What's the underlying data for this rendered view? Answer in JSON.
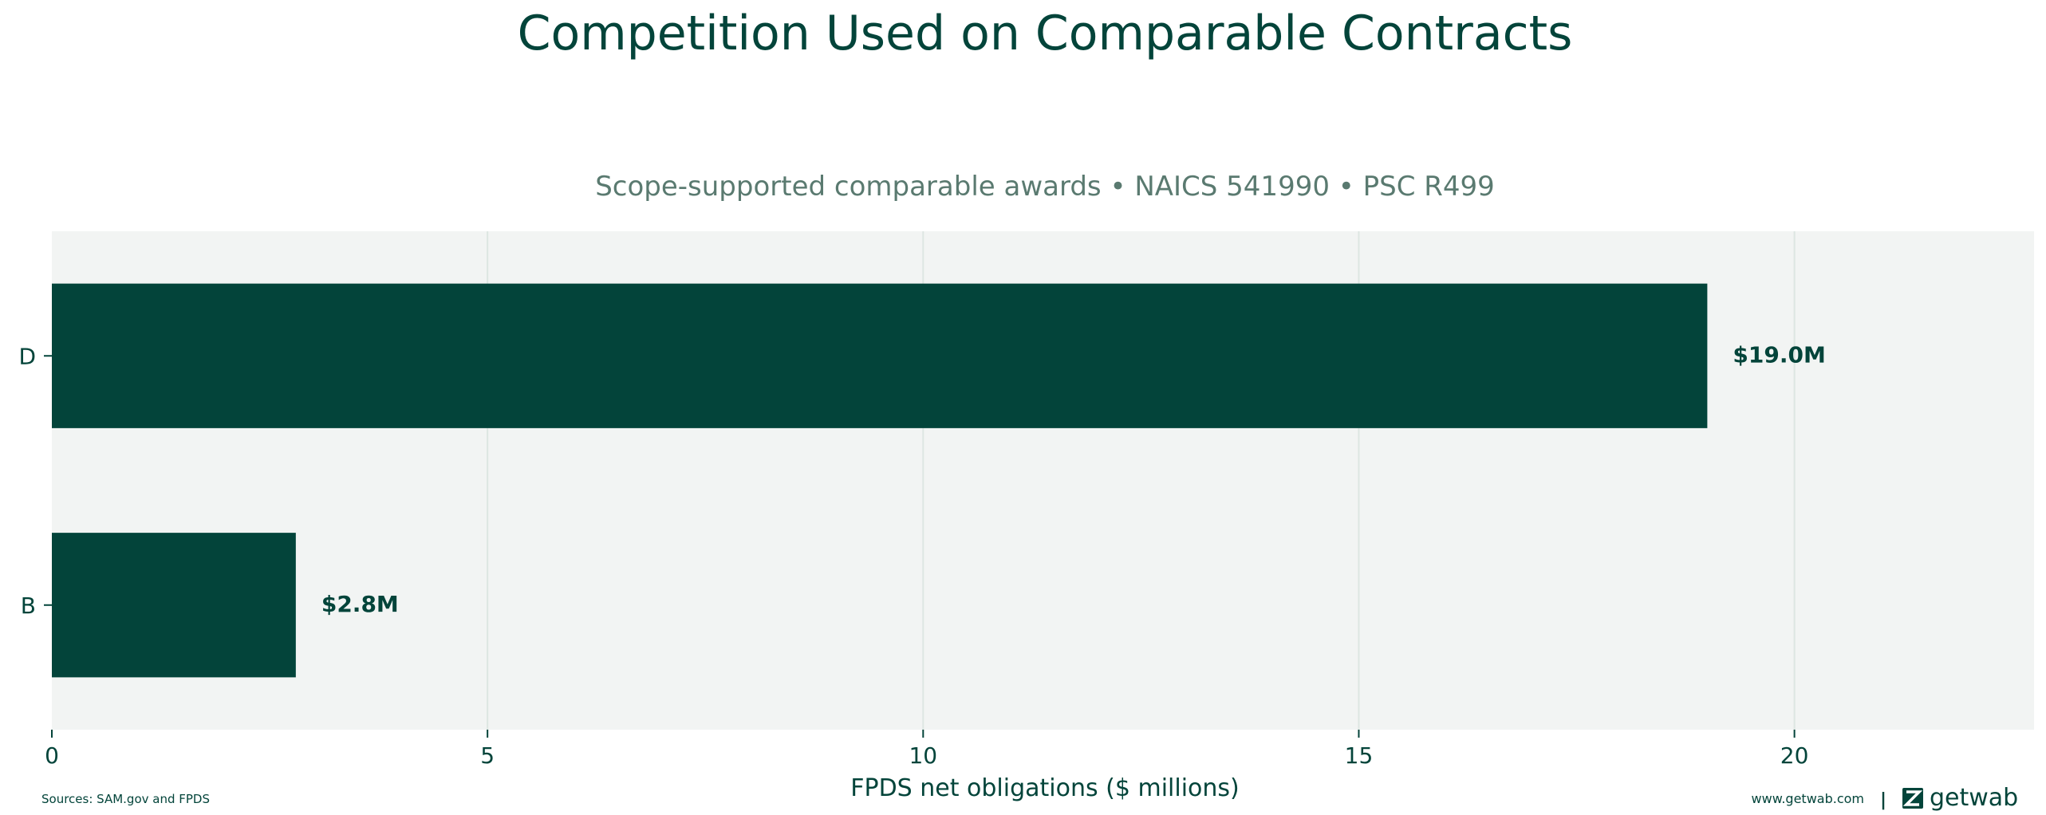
{
  "chart_data": {
    "type": "bar",
    "orientation": "horizontal",
    "title": "Competition Used on Comparable Contracts",
    "subtitle": "Scope-supported comparable awards • NAICS 541990 • PSC R499",
    "xlabel": "FPDS net obligations ($ millions)",
    "ylabel": "",
    "categories": [
      "D",
      "B"
    ],
    "values": [
      19.0,
      2.8
    ],
    "value_labels": [
      "$19.0M",
      "$2.8M"
    ],
    "xlim": [
      0,
      22.75
    ],
    "xticks": [
      0,
      5,
      10,
      15,
      20
    ],
    "xtick_labels": [
      "0",
      "5",
      "10",
      "15",
      "20"
    ],
    "grid": "vertical",
    "legend": "none"
  },
  "footer": {
    "sources": "Sources: SAM.gov and FPDS",
    "website": "www.getwab.com",
    "separator": "|",
    "brand": "getwab"
  },
  "colors": {
    "bar": "#03443a",
    "text_dark": "#03443a",
    "subtitle": "#5a7a70",
    "plot_bg": "#f2f4f3",
    "grid": "#dde6e2"
  }
}
